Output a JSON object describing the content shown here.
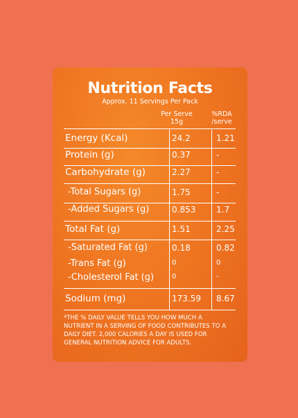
{
  "header": {
    "title": "Nutrition Facts",
    "subtitle": "Approx. 11 Servings Per Pack"
  },
  "columns": [
    [
      "Per Serve",
      "15g"
    ],
    [
      "%RDA",
      "/serve"
    ]
  ],
  "rows": [
    [
      "Energy (Kcal)",
      "24.2",
      "1.21"
    ],
    [
      "Protein (g)",
      "0.37",
      "-"
    ],
    [
      "Carbohydrate (g)",
      "2.27",
      "-"
    ],
    [
      "-Total Sugars (g)",
      "1.75",
      "-"
    ],
    [
      "-Added Sugars (g)",
      "0.853",
      "1.7"
    ],
    [
      "Total Fat (g)",
      "1.51",
      "2.25"
    ],
    [
      "-Saturated Fat (g)",
      "0.18",
      "0.82"
    ],
    [
      "-Trans Fat (g)",
      "0",
      "0"
    ],
    [
      "-Cholesterol Fat (g)",
      "0",
      "-"
    ],
    [
      "Sodium (mg)",
      "173.59",
      "8.67"
    ]
  ],
  "footnote": [
    "*THE % DAILY VALUE TELLS YOU HOW MUCH A",
    "NUTRIENT  IN A SERVING OF FOOD CONTRIBUTES TO A",
    "DAILY DIET. 2,000 CALORIES A DAY IS USED FOR",
    "GENERAL NUTRITION ADVICE FOR ADULTS."
  ]
}
